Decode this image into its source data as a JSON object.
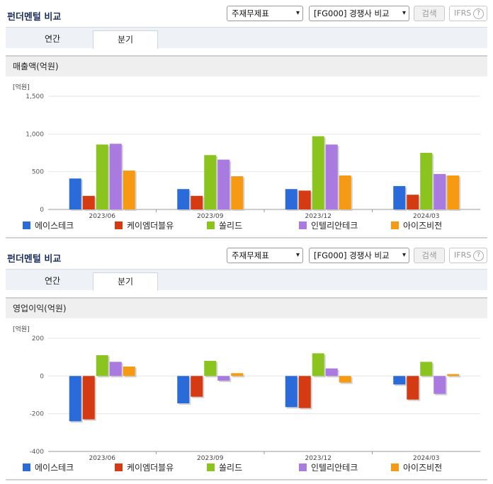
{
  "colors": {
    "series": [
      "#2a6bd9",
      "#d53b12",
      "#8bc41e",
      "#a97be0",
      "#f59a12"
    ],
    "grid": "#e6e6e6",
    "axis": "#666666"
  },
  "panels": [
    {
      "title": "펀더멘털 비교",
      "select1": "주재무제표",
      "select2": "[FG000] 경쟁사 비교",
      "search_label": "검색",
      "ifrs_label": "IFRS",
      "tabs": [
        "연간",
        "분기"
      ],
      "active_tab": 1,
      "section_title": "매출액(억원)"
    },
    {
      "title": "펀더멘털 비교",
      "select1": "주재무제표",
      "select2": "[FG000] 경쟁사 비교",
      "search_label": "검색",
      "ifrs_label": "IFRS",
      "tabs": [
        "연간",
        "분기"
      ],
      "active_tab": 1,
      "section_title": "영업이익(억원)"
    }
  ],
  "chart_data": [
    {
      "type": "bar",
      "unit_label": "[억원]",
      "categories": [
        "2023/06",
        "2023/09",
        "2023/12",
        "2024/03"
      ],
      "ylim": [
        0,
        1500
      ],
      "yticks": [
        0,
        500,
        1000,
        1500
      ],
      "ytick_labels": [
        "0",
        "500",
        "1,000",
        "1,500"
      ],
      "grid": true,
      "legend_position": "bottom",
      "series": [
        {
          "name": "에이스테크",
          "values": [
            410,
            270,
            270,
            310
          ]
        },
        {
          "name": "케이엠더블유",
          "values": [
            180,
            180,
            250,
            195
          ]
        },
        {
          "name": "쏠리드",
          "values": [
            860,
            720,
            970,
            750
          ]
        },
        {
          "name": "인텔리안테크",
          "values": [
            870,
            660,
            860,
            470
          ]
        },
        {
          "name": "아이즈비전",
          "values": [
            515,
            440,
            450,
            450
          ]
        }
      ]
    },
    {
      "type": "bar",
      "unit_label": "[억원]",
      "categories": [
        "2023/06",
        "2023/09",
        "2023/12",
        "2024/03"
      ],
      "ylim": [
        -400,
        200
      ],
      "yticks": [
        -400,
        -200,
        0,
        200
      ],
      "ytick_labels": [
        "-400",
        "-200",
        "0",
        "200"
      ],
      "grid": true,
      "legend_position": "bottom",
      "series": [
        {
          "name": "에이스테크",
          "values": [
            -240,
            -145,
            -165,
            -45
          ]
        },
        {
          "name": "케이엠더블유",
          "values": [
            -230,
            -110,
            -170,
            -125
          ]
        },
        {
          "name": "쏠리드",
          "values": [
            110,
            80,
            120,
            75
          ]
        },
        {
          "name": "인텔리안테크",
          "values": [
            75,
            -25,
            40,
            -95
          ]
        },
        {
          "name": "아이즈비전",
          "values": [
            50,
            15,
            -35,
            10
          ]
        }
      ]
    }
  ]
}
